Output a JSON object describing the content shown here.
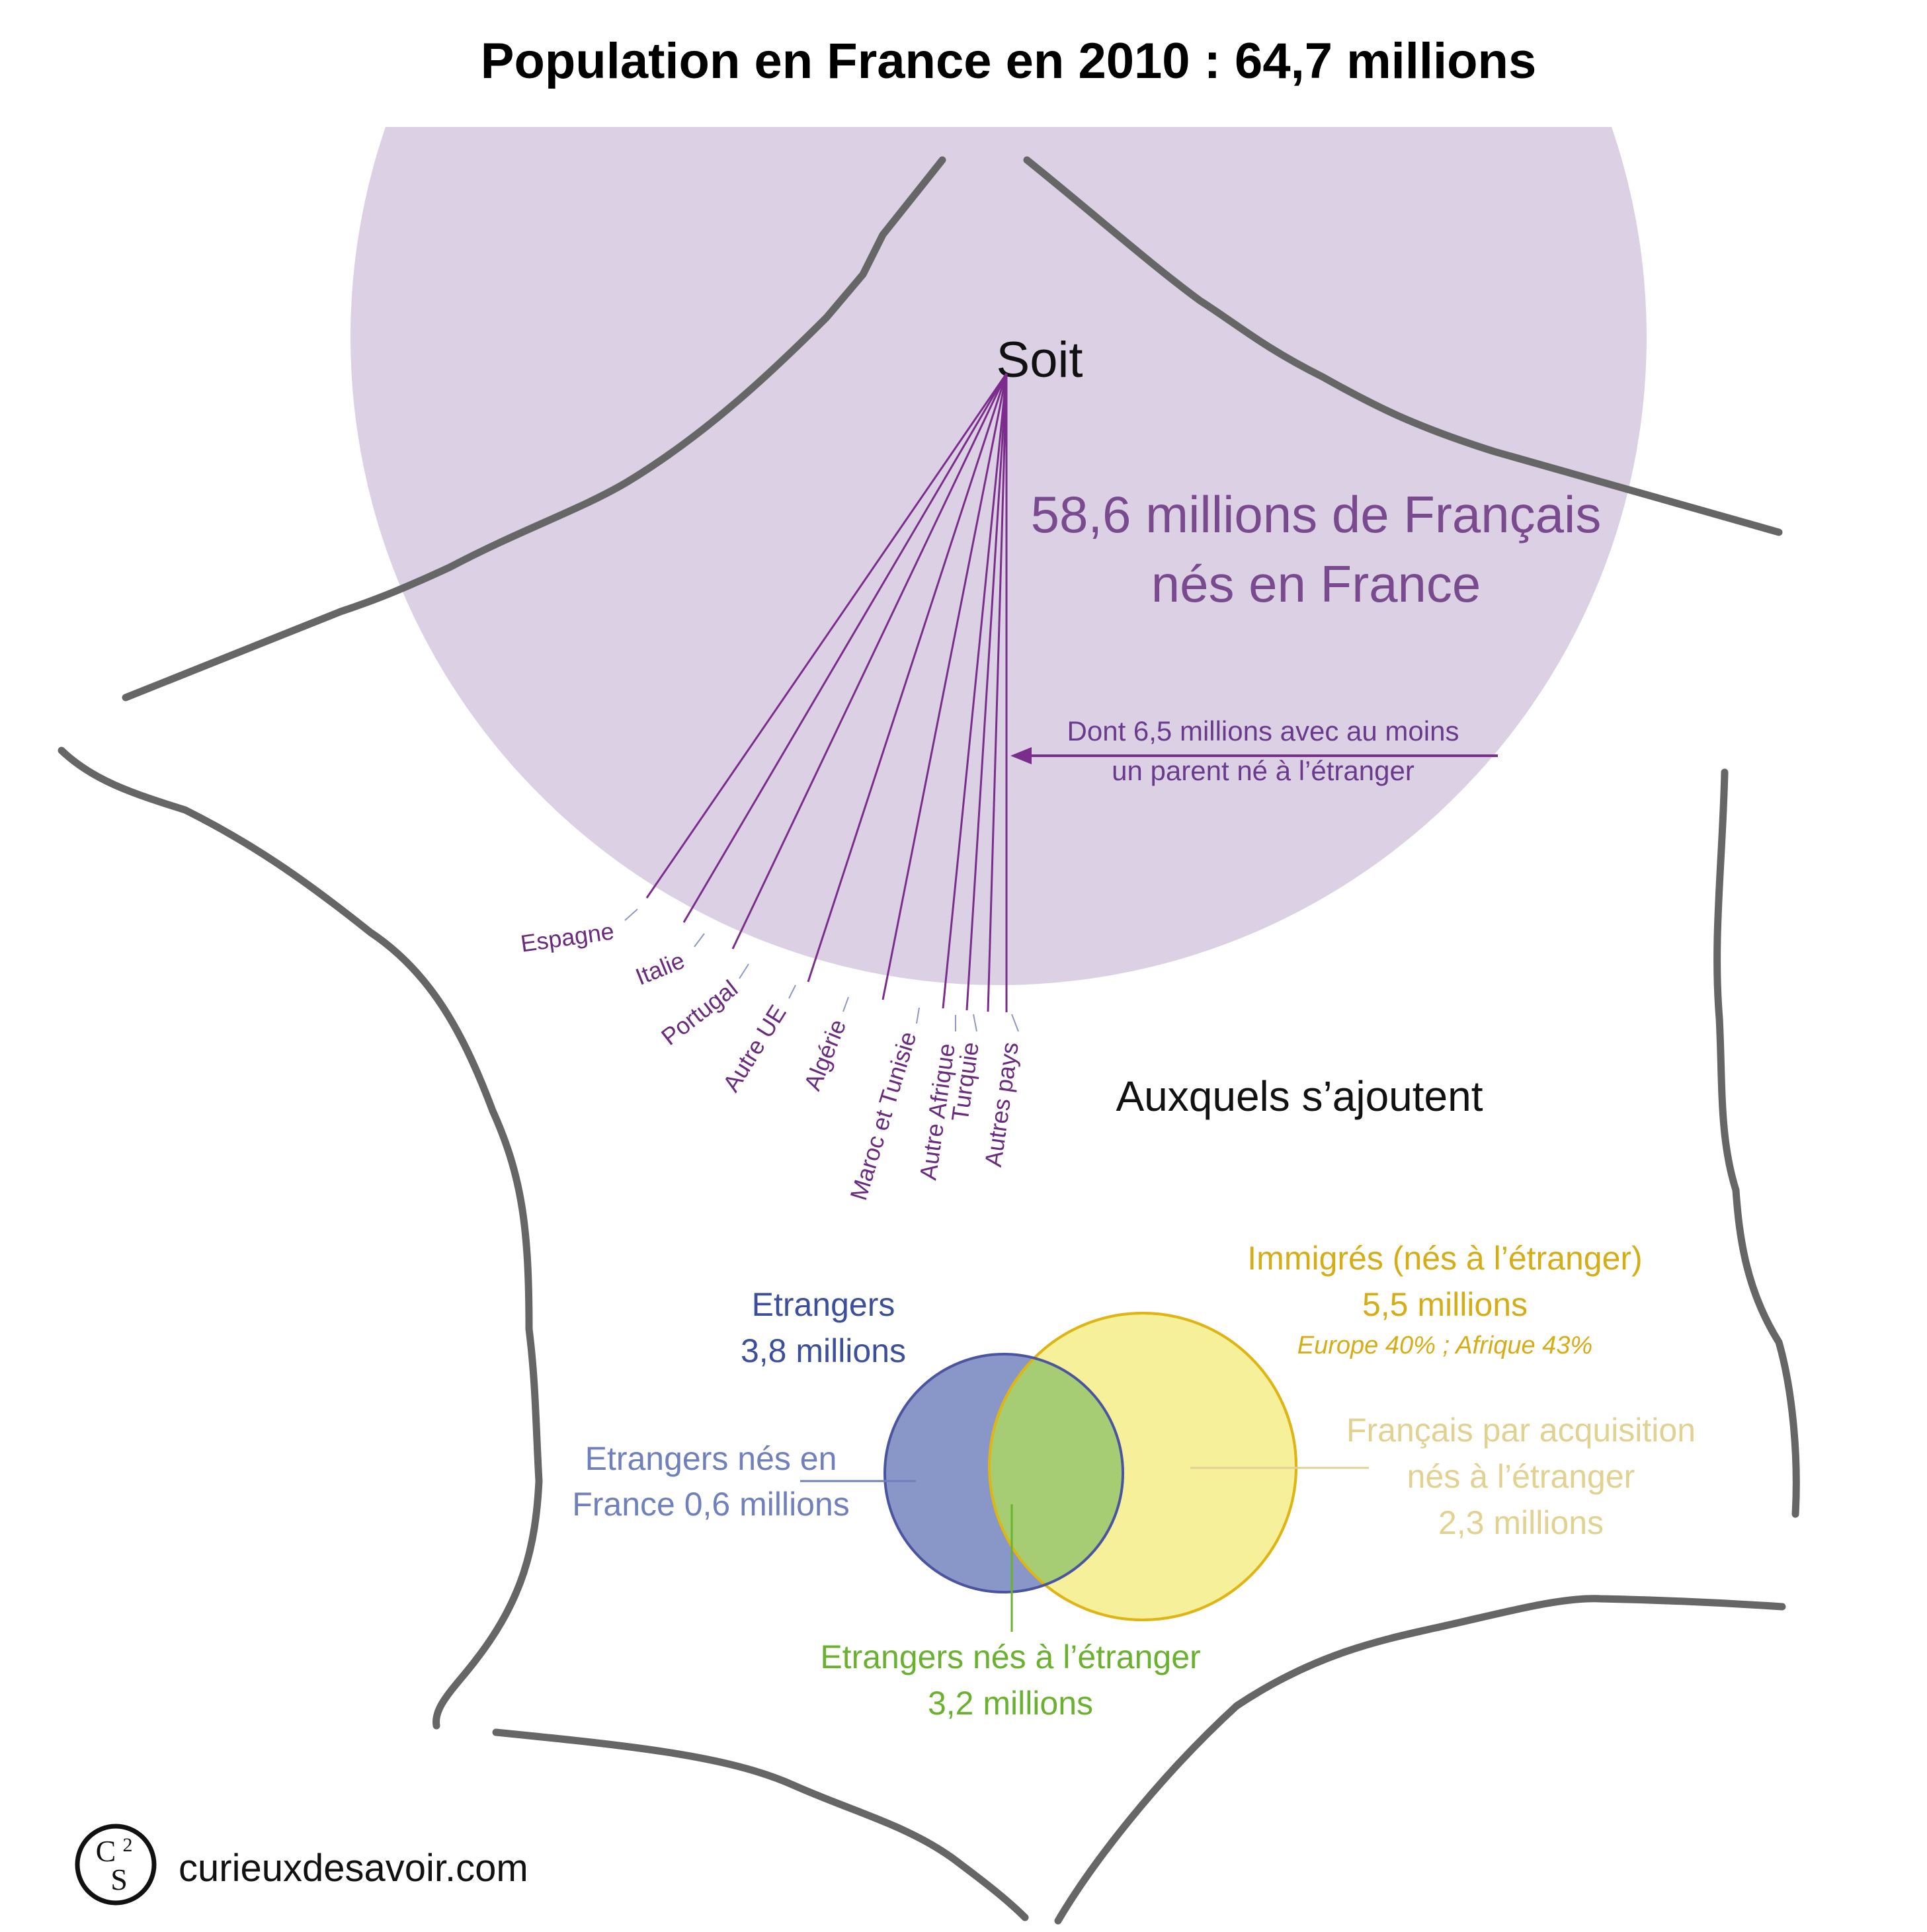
{
  "title": "Population en France en 2010 : 64,7 millions",
  "soit": "Soit",
  "french_born": {
    "line1": "58,6 millions de Français",
    "line2": "nés en France"
  },
  "parent_note": {
    "line1": "Dont 6,5 millions avec au moins",
    "line2": "un parent né à l’étranger"
  },
  "countries": [
    "Espagne",
    "Italie",
    "Portugal",
    "Autre UE",
    "Algérie",
    "Maroc et Tunisie",
    "Autre Afrique",
    "Turquie",
    "Autres pays"
  ],
  "auxquels": "Auxquels s’ajoutent",
  "etrangers": {
    "line1": "Etrangers",
    "line2": "3,8 millions"
  },
  "immigres": {
    "line1": "Immigrés (nés à l’étranger)",
    "line2": "5,5 millions",
    "detail": "Europe 40% ; Afrique 43%"
  },
  "etrangers_nes_france": {
    "line1": "Etrangers nés en",
    "line2": "France 0,6 millions"
  },
  "francais_acquisition": {
    "line1": "Français par acquisition",
    "line2": "nés à l’étranger",
    "line3": "2,3 millions"
  },
  "etrangers_nes_etranger": {
    "line1": "Etrangers nés à l’étranger",
    "line2": "3,2 millions"
  },
  "site": "curieuxdesavoir.com",
  "logo": {
    "top": "C",
    "sup": "2",
    "bottom": "S"
  },
  "colors": {
    "big_circle": "#dcd1e4",
    "purple_text": "#7a4a8f",
    "fan_lines": "#7a2d8a",
    "blue_circle": "#8897c8",
    "blue_stroke": "#4a54a0",
    "yellow_circle": "#f7f09a",
    "yellow_stroke": "#dfb514",
    "green_overlap": "#a6cd73",
    "border_lines": "#666666"
  }
}
